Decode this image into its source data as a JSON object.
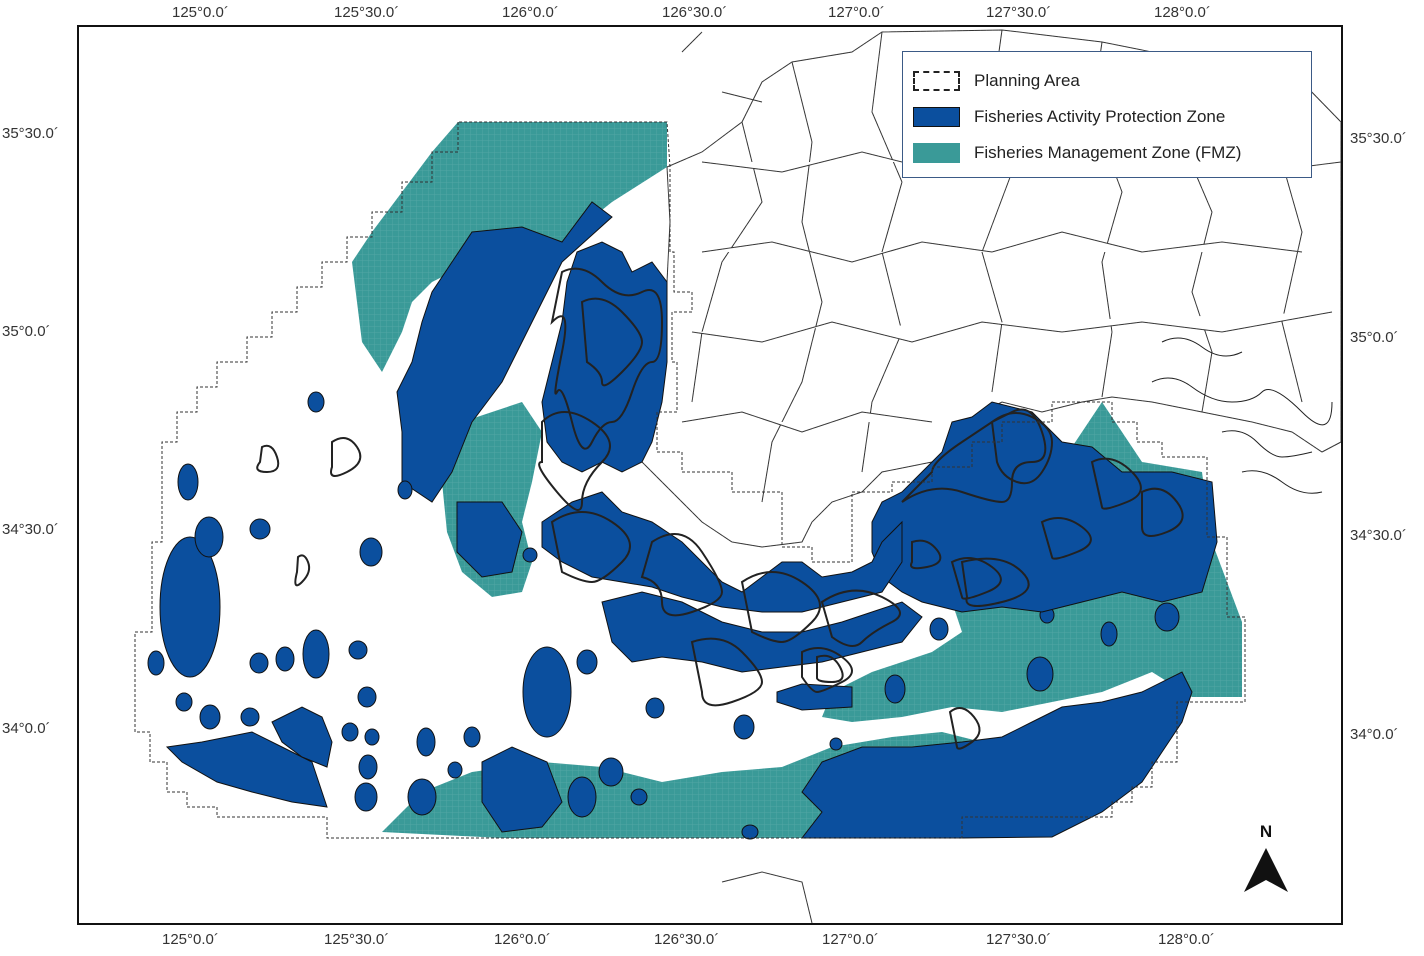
{
  "map": {
    "x_ticks": [
      "125°0.0´",
      "125°30.0´",
      "126°0.0´",
      "126°30.0´",
      "127°0.0´",
      "127°30.0´",
      "128°0.0´"
    ],
    "y_ticks": [
      "35°30.0´",
      "35°0.0´",
      "34°30.0´",
      "34°0.0´"
    ],
    "colors": {
      "fapz": "#0b4f9e",
      "fmz": "#3a9a98",
      "outline": "#222222",
      "frame": "#111111"
    }
  },
  "legend": {
    "planning_area": "Planning Area",
    "fapz": "Fisheries Activity Protection Zone",
    "fmz": "Fisheries Management Zone (FMZ)"
  },
  "north_arrow": {
    "label": "N"
  }
}
